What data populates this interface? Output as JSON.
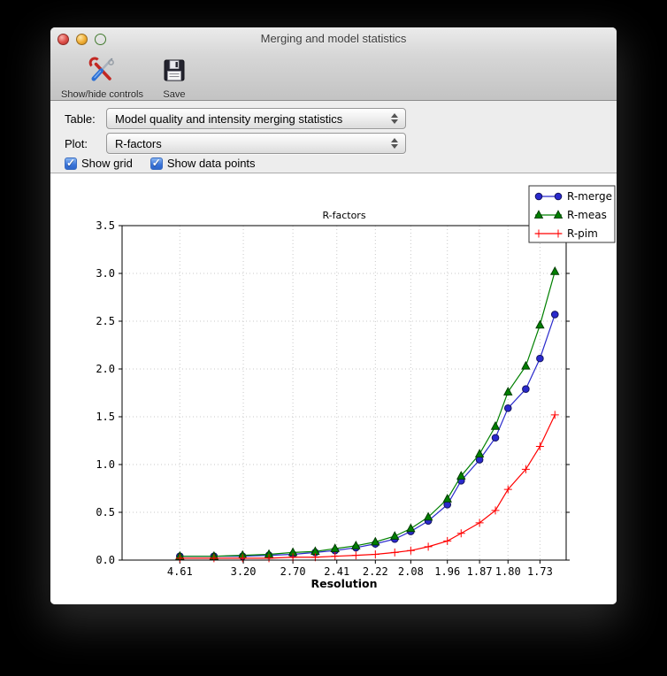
{
  "window": {
    "title": "Merging and model statistics"
  },
  "toolbar": {
    "buttons": [
      {
        "label": "Show/hide controls",
        "icon": "tools-icon"
      },
      {
        "label": "Save",
        "icon": "save-icon"
      }
    ]
  },
  "controls": {
    "table_label": "Table:",
    "table_value": "Model quality and intensity merging statistics",
    "plot_label": "Plot:",
    "plot_value": "R-factors",
    "show_grid_label": "Show grid",
    "show_grid_checked": true,
    "show_data_points_label": "Show data points",
    "show_data_points_checked": true
  },
  "chart_data": {
    "type": "line",
    "title": "R-factors",
    "xlabel": "Resolution",
    "ylabel": "",
    "grid": true,
    "show_data_points": true,
    "legend_position": "upper right",
    "ylim": [
      0.0,
      3.5
    ],
    "ytick_labels": [
      "0.0",
      "0.5",
      "1.0",
      "1.5",
      "2.0",
      "2.5",
      "3.0",
      "3.5"
    ],
    "x_axis": {
      "note": "resolution axis, linear in 1/d^2",
      "xlim_inv_d2": [
        0.001,
        0.355
      ],
      "tick_d_values": [
        4.61,
        3.2,
        2.7,
        2.41,
        2.22,
        2.08,
        1.96,
        1.87,
        1.8,
        1.73
      ],
      "tick_labels": [
        "4.61",
        "3.20",
        "2.70",
        "2.41",
        "2.22",
        "2.08",
        "1.96",
        "1.87",
        "1.80",
        "1.73"
      ]
    },
    "x_d_values": [
      4.61,
      3.67,
      3.21,
      2.91,
      2.7,
      2.54,
      2.42,
      2.31,
      2.22,
      2.14,
      2.08,
      2.02,
      1.96,
      1.92,
      1.87,
      1.83,
      1.8,
      1.76,
      1.73,
      1.7
    ],
    "series": [
      {
        "name": "R-merge",
        "color": "#2929cc",
        "edge_color": "#14145e",
        "marker": "circle",
        "values": [
          0.04,
          0.04,
          0.04,
          0.05,
          0.06,
          0.08,
          0.1,
          0.13,
          0.17,
          0.22,
          0.3,
          0.41,
          0.58,
          0.83,
          1.05,
          1.28,
          1.59,
          1.79,
          2.11,
          2.57
        ]
      },
      {
        "name": "R-meas",
        "color": "#008000",
        "edge_color": "#003c00",
        "marker": "triangle",
        "values": [
          0.04,
          0.04,
          0.05,
          0.06,
          0.08,
          0.09,
          0.12,
          0.15,
          0.19,
          0.25,
          0.33,
          0.45,
          0.64,
          0.88,
          1.11,
          1.4,
          1.76,
          2.03,
          2.46,
          3.02
        ]
      },
      {
        "name": "R-pim",
        "color": "#ff0000",
        "edge_color": "#ff0000",
        "marker": "plus",
        "values": [
          0.02,
          0.02,
          0.02,
          0.02,
          0.03,
          0.03,
          0.04,
          0.05,
          0.06,
          0.08,
          0.1,
          0.14,
          0.2,
          0.28,
          0.39,
          0.52,
          0.74,
          0.95,
          1.19,
          1.52
        ]
      }
    ]
  }
}
